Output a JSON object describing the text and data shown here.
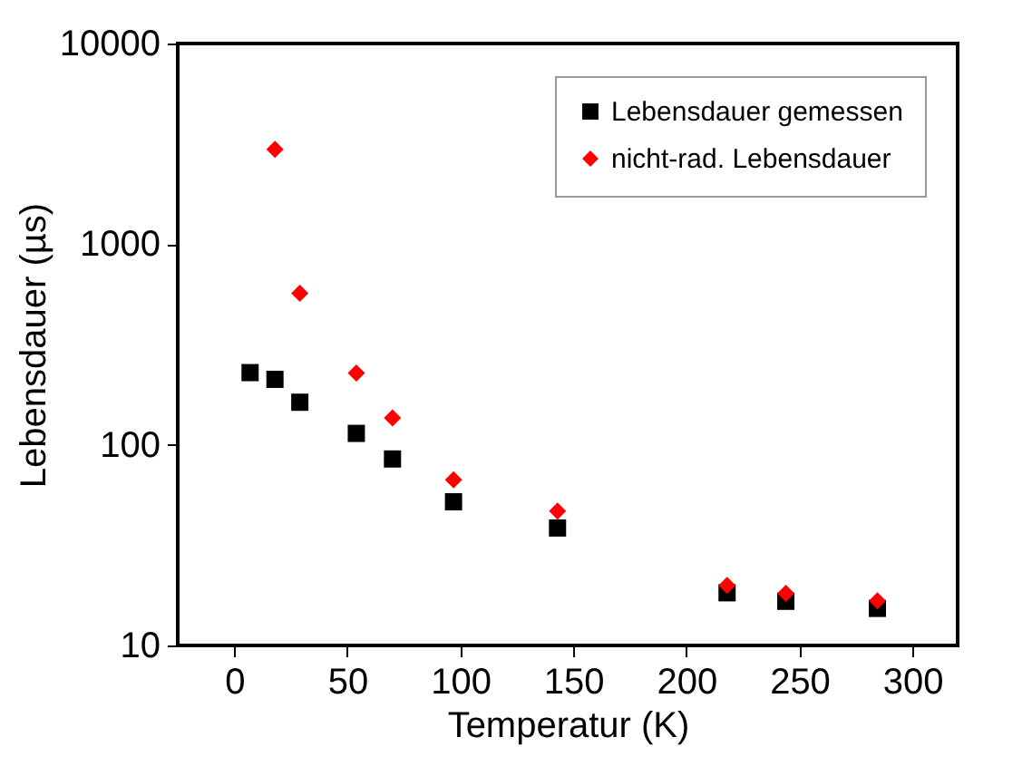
{
  "chart_data": {
    "type": "scatter",
    "xlabel": "Temperatur (K)",
    "ylabel": "Lebensdauer (µs)",
    "log": "y",
    "xlim": [
      -25,
      320
    ],
    "xticks": [
      0,
      50,
      100,
      150,
      200,
      250,
      300
    ],
    "ylim": [
      10,
      10000
    ],
    "yticks": [
      10,
      100,
      1000,
      10000
    ],
    "legend": "top right",
    "grid": false,
    "x": [
      7,
      18,
      29,
      54,
      70,
      97,
      143,
      218,
      244,
      284.5
    ],
    "series": [
      {
        "name": "Lebensdauer gemessen",
        "color": "#000000",
        "marker": "square",
        "values": [
          229,
          212,
          163,
          114,
          85,
          52,
          38.5,
          18.3,
          16.6,
          15.3
        ]
      },
      {
        "name": "nicht-rad. Lebensdauer",
        "color": "#ff0000",
        "marker": "diamond",
        "x": [
          18,
          29,
          54,
          70,
          97,
          143,
          218,
          244,
          284.5
        ],
        "values": [
          2967,
          569,
          228,
          136,
          67,
          46.8,
          19.9,
          18.2,
          16.7
        ]
      }
    ]
  }
}
